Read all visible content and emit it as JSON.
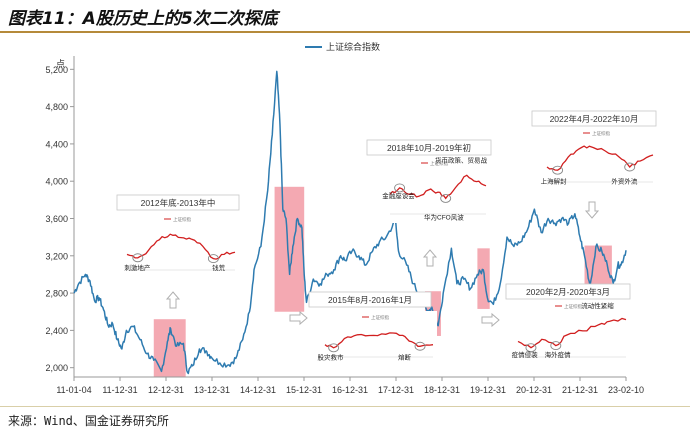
{
  "title": "图表11：A股历史上的5次二次探底",
  "source": "来源：Wind、国金证券研究所",
  "chart_data": {
    "type": "line",
    "ylabel": "点",
    "ylim": [
      1900,
      5300
    ],
    "yticks": [
      2000,
      2400,
      2800,
      3200,
      3600,
      4000,
      4400,
      4800,
      5200
    ],
    "ytick_labels": [
      "2,000",
      "2,400",
      "2,800",
      "3,200",
      "3,600",
      "4,000",
      "4,400",
      "4,800",
      "5,200"
    ],
    "xtick_labels": [
      "11-01-04",
      "11-12-31",
      "12-12-31",
      "13-12-31",
      "14-12-31",
      "15-12-31",
      "16-12-31",
      "17-12-31",
      "18-12-31",
      "19-12-31",
      "20-12-31",
      "21-12-31",
      "23-02-10"
    ],
    "series": [
      {
        "name": "上证综合指数",
        "color": "#2e7bb0",
        "points": [
          [
            2011.0,
            2800
          ],
          [
            2011.1,
            2900
          ],
          [
            2011.25,
            3000
          ],
          [
            2011.35,
            2930
          ],
          [
            2011.45,
            2720
          ],
          [
            2011.55,
            2750
          ],
          [
            2011.65,
            2620
          ],
          [
            2011.75,
            2450
          ],
          [
            2011.85,
            2470
          ],
          [
            2011.95,
            2300
          ],
          [
            2012.05,
            2200
          ],
          [
            2012.15,
            2400
          ],
          [
            2012.3,
            2440
          ],
          [
            2012.45,
            2300
          ],
          [
            2012.6,
            2150
          ],
          [
            2012.75,
            2080
          ],
          [
            2012.92,
            1960
          ],
          [
            2013.05,
            2280
          ],
          [
            2013.12,
            2420
          ],
          [
            2013.25,
            2230
          ],
          [
            2013.4,
            2260
          ],
          [
            2013.49,
            1950
          ],
          [
            2013.6,
            2020
          ],
          [
            2013.75,
            2200
          ],
          [
            2013.9,
            2180
          ],
          [
            2014.0,
            2120
          ],
          [
            2014.2,
            2050
          ],
          [
            2014.4,
            2030
          ],
          [
            2014.55,
            2100
          ],
          [
            2014.7,
            2300
          ],
          [
            2014.85,
            2600
          ],
          [
            2014.95,
            3050
          ],
          [
            2015.1,
            3300
          ],
          [
            2015.25,
            3900
          ],
          [
            2015.35,
            4500
          ],
          [
            2015.45,
            5178
          ],
          [
            2015.52,
            4600
          ],
          [
            2015.58,
            3700
          ],
          [
            2015.65,
            3600
          ],
          [
            2015.73,
            3000
          ],
          [
            2015.8,
            3300
          ],
          [
            2015.9,
            3600
          ],
          [
            2016.0,
            3500
          ],
          [
            2016.05,
            3000
          ],
          [
            2016.1,
            2700
          ],
          [
            2016.25,
            2950
          ],
          [
            2016.4,
            2900
          ],
          [
            2016.55,
            3000
          ],
          [
            2016.7,
            3050
          ],
          [
            2016.85,
            3200
          ],
          [
            2016.95,
            3150
          ],
          [
            2017.1,
            3250
          ],
          [
            2017.25,
            3200
          ],
          [
            2017.4,
            3100
          ],
          [
            2017.55,
            3250
          ],
          [
            2017.7,
            3350
          ],
          [
            2017.85,
            3400
          ],
          [
            2018.05,
            3580
          ],
          [
            2018.12,
            3250
          ],
          [
            2018.3,
            3100
          ],
          [
            2018.45,
            2900
          ],
          [
            2018.6,
            2750
          ],
          [
            2018.75,
            2600
          ],
          [
            2018.85,
            2650
          ],
          [
            2018.99,
            2450
          ],
          [
            2019.1,
            2800
          ],
          [
            2019.28,
            3280
          ],
          [
            2019.4,
            2900
          ],
          [
            2019.55,
            2950
          ],
          [
            2019.7,
            2850
          ],
          [
            2019.85,
            3000
          ],
          [
            2019.98,
            3050
          ],
          [
            2020.07,
            2750
          ],
          [
            2020.2,
            2680
          ],
          [
            2020.35,
            2900
          ],
          [
            2020.5,
            3400
          ],
          [
            2020.65,
            3300
          ],
          [
            2020.8,
            3350
          ],
          [
            2020.95,
            3480
          ],
          [
            2021.1,
            3700
          ],
          [
            2021.25,
            3450
          ],
          [
            2021.4,
            3600
          ],
          [
            2021.55,
            3550
          ],
          [
            2021.7,
            3600
          ],
          [
            2021.85,
            3550
          ],
          [
            2021.99,
            3650
          ],
          [
            2022.1,
            3400
          ],
          [
            2022.2,
            3200
          ],
          [
            2022.32,
            2880
          ],
          [
            2022.45,
            3300
          ],
          [
            2022.58,
            3250
          ],
          [
            2022.7,
            3100
          ],
          [
            2022.83,
            2900
          ],
          [
            2022.93,
            3100
          ],
          [
            2023.0,
            3100
          ],
          [
            2023.11,
            3260
          ]
        ]
      }
    ],
    "highlight_box_color": "#f29aa5",
    "highlight_periods": [
      {
        "x0": 2012.75,
        "x1": 2013.45,
        "y0": 1900,
        "y1": 2520
      },
      {
        "x0": 2015.4,
        "x1": 2016.05,
        "y0": 2600,
        "y1": 3940
      },
      {
        "x0": 2018.7,
        "x1": 2019.05,
        "y0": 2340,
        "y1": 2820
      },
      {
        "x0": 2019.85,
        "x1": 2020.12,
        "y0": 2630,
        "y1": 3280
      },
      {
        "x0": 2022.2,
        "x1": 2022.8,
        "y0": 2760,
        "y1": 3310
      }
    ],
    "insets": [
      {
        "title": "2012年底-2013年中",
        "annotations": [
          "刺激地产",
          "钱荒"
        ],
        "points": [
          [
            0,
            0.3
          ],
          [
            0.1,
            0.22
          ],
          [
            0.2,
            0.4
          ],
          [
            0.3,
            0.65
          ],
          [
            0.4,
            0.78
          ],
          [
            0.5,
            0.7
          ],
          [
            0.6,
            0.66
          ],
          [
            0.7,
            0.5
          ],
          [
            0.8,
            0.2
          ],
          [
            0.9,
            0.3
          ],
          [
            1,
            0.35
          ]
        ],
        "marks": [
          [
            0.1,
            0.22
          ],
          [
            0.8,
            0.2
          ]
        ]
      },
      {
        "title": "2015年8月-2016年1月",
        "annotations": [
          "股灾救市",
          "熔断"
        ],
        "points": [
          [
            0,
            0.3
          ],
          [
            0.08,
            0.2
          ],
          [
            0.18,
            0.5
          ],
          [
            0.3,
            0.62
          ],
          [
            0.45,
            0.6
          ],
          [
            0.6,
            0.68
          ],
          [
            0.72,
            0.6
          ],
          [
            0.8,
            0.4
          ],
          [
            0.88,
            0.25
          ],
          [
            1,
            0.3
          ]
        ],
        "marks": [
          [
            0.08,
            0.2
          ],
          [
            0.88,
            0.25
          ]
        ]
      },
      {
        "title": "2018年10月-2019年初",
        "annotations": [
          "货币政策、贸易战",
          "金融座谈会",
          "华为CFO风波"
        ],
        "points": [
          [
            0,
            0.4
          ],
          [
            0.1,
            0.55
          ],
          [
            0.2,
            0.4
          ],
          [
            0.3,
            0.35
          ],
          [
            0.4,
            0.5
          ],
          [
            0.5,
            0.45
          ],
          [
            0.58,
            0.3
          ],
          [
            0.68,
            0.55
          ],
          [
            0.8,
            0.85
          ],
          [
            0.9,
            0.7
          ],
          [
            1,
            0.6
          ]
        ],
        "marks": [
          [
            0.1,
            0.55
          ],
          [
            0.58,
            0.3
          ]
        ]
      },
      {
        "title": "2020年2月-2020年3月",
        "annotations": [
          "流动性紧缩",
          "疫情侵袭",
          "海外疫情"
        ],
        "points": [
          [
            0,
            0.3
          ],
          [
            0.12,
            0.15
          ],
          [
            0.22,
            0.35
          ],
          [
            0.35,
            0.2
          ],
          [
            0.45,
            0.45
          ],
          [
            0.6,
            0.55
          ],
          [
            0.75,
            0.7
          ],
          [
            0.85,
            0.78
          ],
          [
            1,
            0.82
          ]
        ],
        "marks": [
          [
            0.12,
            0.15
          ],
          [
            0.35,
            0.2
          ]
        ]
      },
      {
        "title": "2022年4月-2022年10月",
        "annotations": [
          "上海解封",
          "外资外流"
        ],
        "points": [
          [
            0,
            0.3
          ],
          [
            0.1,
            0.22
          ],
          [
            0.2,
            0.55
          ],
          [
            0.3,
            0.75
          ],
          [
            0.4,
            0.82
          ],
          [
            0.55,
            0.7
          ],
          [
            0.68,
            0.55
          ],
          [
            0.78,
            0.3
          ],
          [
            0.88,
            0.45
          ],
          [
            1,
            0.6
          ]
        ],
        "marks": [
          [
            0.1,
            0.22
          ],
          [
            0.78,
            0.3
          ]
        ]
      }
    ],
    "inset_legend": "上证综指",
    "legend_position": "top"
  }
}
